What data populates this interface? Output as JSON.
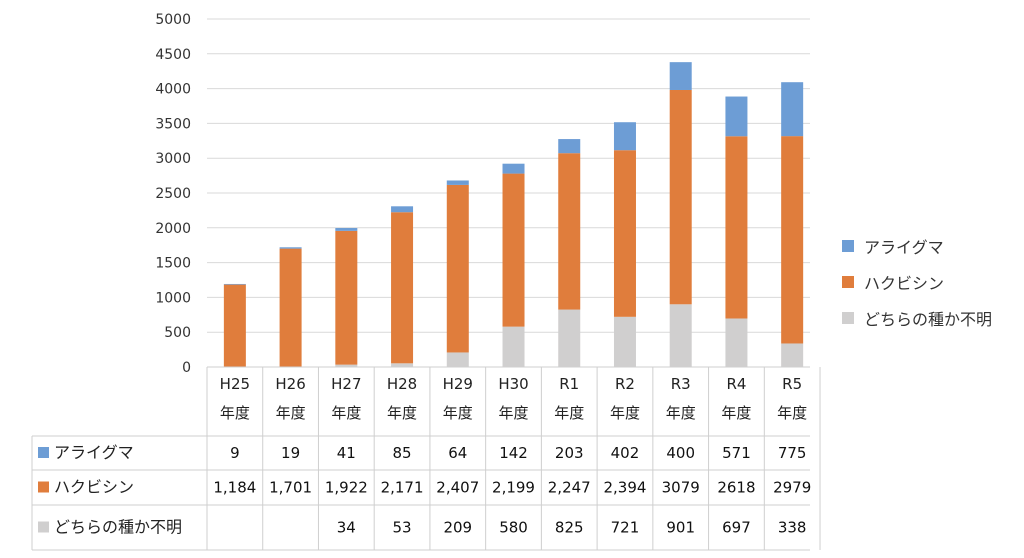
{
  "chart_data": {
    "type": "bar",
    "stacked": true,
    "title": "",
    "xlabel": "",
    "ylabel": "",
    "ylim": [
      0,
      5000
    ],
    "yticks": [
      0,
      500,
      1000,
      1500,
      2000,
      2500,
      3000,
      3500,
      4000,
      4500,
      5000
    ],
    "gridlines": true,
    "legend_position": "right",
    "categories": [
      {
        "top": "H25",
        "bottom": "年度"
      },
      {
        "top": "H26",
        "bottom": "年度"
      },
      {
        "top": "H27",
        "bottom": "年度"
      },
      {
        "top": "H28",
        "bottom": "年度"
      },
      {
        "top": "H29",
        "bottom": "年度"
      },
      {
        "top": "H30",
        "bottom": "年度"
      },
      {
        "top": "R1",
        "bottom": "年度"
      },
      {
        "top": "R2",
        "bottom": "年度"
      },
      {
        "top": "R3",
        "bottom": "年度"
      },
      {
        "top": "R4",
        "bottom": "年度"
      },
      {
        "top": "R5",
        "bottom": "年度"
      }
    ],
    "series": [
      {
        "name": "アライグマ",
        "color": "#6d9dd5",
        "values": [
          9,
          19,
          41,
          85,
          64,
          142,
          203,
          402,
          400,
          571,
          775
        ],
        "labels": [
          "9",
          "19",
          "41",
          "85",
          "64",
          "142",
          "203",
          "402",
          "400",
          "571",
          "775"
        ]
      },
      {
        "name": "ハクビシン",
        "color": "#e07d3c",
        "values": [
          1184,
          1701,
          1922,
          2171,
          2407,
          2199,
          2247,
          2394,
          3079,
          2618,
          2979
        ],
        "labels": [
          "1,184",
          "1,701",
          "1,922",
          "2,171",
          "2,407",
          "2,199",
          "2,247",
          "2,394",
          "3079",
          "2618",
          "2979"
        ]
      },
      {
        "name": "どちらの種か不明",
        "color": "#d0cfcf",
        "values": [
          0,
          0,
          34,
          53,
          209,
          580,
          825,
          721,
          901,
          697,
          338
        ],
        "labels": [
          "",
          "",
          "34",
          "53",
          "209",
          "580",
          "825",
          "721",
          "901",
          "697",
          "338"
        ]
      }
    ],
    "stack_order": [
      "どちらの種か不明",
      "ハクビシン",
      "アライグマ"
    ],
    "legend_order": [
      "アライグマ",
      "ハクビシン",
      "どちらの種か不明"
    ],
    "table_row_order": [
      "アライグマ",
      "ハクビシン",
      "どちらの種か不明"
    ]
  }
}
